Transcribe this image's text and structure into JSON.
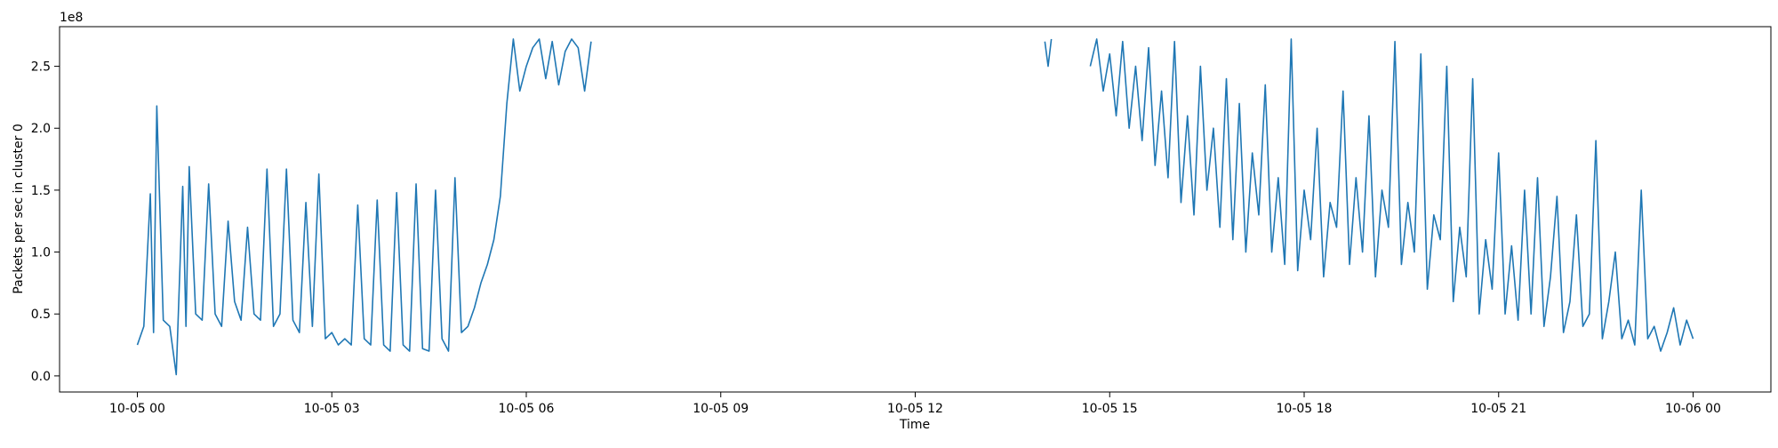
{
  "chart_data": {
    "type": "line",
    "title": "",
    "xlabel": "Time",
    "ylabel": "Packets per sec in cluster 0",
    "y_exponent_label": "1e8",
    "x_ticks": [
      {
        "hours": 0,
        "label": "10-05 00"
      },
      {
        "hours": 3,
        "label": "10-05 03"
      },
      {
        "hours": 6,
        "label": "10-05 06"
      },
      {
        "hours": 9,
        "label": "10-05 09"
      },
      {
        "hours": 12,
        "label": "10-05 12"
      },
      {
        "hours": 15,
        "label": "10-05 15"
      },
      {
        "hours": 18,
        "label": "10-05 18"
      },
      {
        "hours": 21,
        "label": "10-05 21"
      },
      {
        "hours": 24,
        "label": "10-06 00"
      }
    ],
    "xlim_hours": [
      -1.2,
      25.2
    ],
    "y_ticks": [
      {
        "value": 0.0,
        "label": "0.0"
      },
      {
        "value": 0.5,
        "label": "0.5"
      },
      {
        "value": 1.0,
        "label": "1.0"
      },
      {
        "value": 1.5,
        "label": "1.5"
      },
      {
        "value": 2.0,
        "label": "2.0"
      },
      {
        "value": 2.5,
        "label": "2.5"
      }
    ],
    "ylim": [
      -0.13,
      2.82
    ],
    "grid": false,
    "legend": "none",
    "series": [
      {
        "color": "#1f77b4",
        "segments": [
          {
            "x": [
              0.0,
              0.1,
              0.2,
              0.25,
              0.3,
              0.4,
              0.5,
              0.6,
              0.7,
              0.75,
              0.8,
              0.9,
              1.0,
              1.1,
              1.2,
              1.3,
              1.4,
              1.5,
              1.6,
              1.7,
              1.8,
              1.9,
              2.0,
              2.1,
              2.2,
              2.3,
              2.4,
              2.5,
              2.6,
              2.7,
              2.8,
              2.9,
              3.0,
              3.1,
              3.2,
              3.3,
              3.4,
              3.5,
              3.6,
              3.7,
              3.8,
              3.9,
              4.0,
              4.1,
              4.2,
              4.3,
              4.4,
              4.5,
              4.6,
              4.7,
              4.8,
              4.9,
              5.0,
              5.1,
              5.2,
              5.3,
              5.4,
              5.5,
              5.6,
              5.7,
              5.8,
              5.9,
              6.0,
              6.1,
              6.2,
              6.3,
              6.4,
              6.5,
              6.6,
              6.7,
              6.8,
              6.9,
              7.0
            ],
            "y": [
              0.25,
              0.4,
              1.47,
              0.35,
              2.18,
              0.45,
              0.4,
              0.01,
              1.53,
              0.4,
              1.69,
              0.5,
              0.45,
              1.55,
              0.5,
              0.4,
              1.25,
              0.6,
              0.45,
              1.2,
              0.5,
              0.45,
              1.67,
              0.4,
              0.5,
              1.67,
              0.45,
              0.35,
              1.4,
              0.4,
              1.63,
              0.3,
              0.35,
              0.25,
              0.3,
              0.25,
              1.38,
              0.3,
              0.25,
              1.42,
              0.25,
              0.2,
              1.48,
              0.25,
              0.2,
              1.55,
              0.22,
              0.2,
              1.5,
              0.3,
              0.2,
              1.6,
              0.35,
              0.4,
              0.55,
              0.75,
              0.9,
              1.1,
              1.45,
              2.2,
              2.72,
              2.3,
              2.5,
              2.65,
              2.72,
              2.4,
              2.7,
              2.35,
              2.62,
              2.72,
              2.65,
              2.3,
              2.7
            ]
          },
          {
            "x": [
              14.0,
              14.05,
              14.1
            ],
            "y": [
              2.7,
              2.5,
              2.72
            ]
          },
          {
            "x": [
              14.7,
              14.8,
              14.9,
              15.0,
              15.1,
              15.2,
              15.3,
              15.4,
              15.5,
              15.6,
              15.7,
              15.8,
              15.9,
              16.0,
              16.1,
              16.2,
              16.3,
              16.4,
              16.5,
              16.6,
              16.7,
              16.8,
              16.9,
              17.0,
              17.1,
              17.2,
              17.3,
              17.4,
              17.5,
              17.6,
              17.7,
              17.8,
              17.9,
              18.0,
              18.1,
              18.2,
              18.3,
              18.4,
              18.5,
              18.6,
              18.7,
              18.8,
              18.9,
              19.0,
              19.1,
              19.2,
              19.3,
              19.4,
              19.5,
              19.6,
              19.7,
              19.8,
              19.9,
              20.0,
              20.1,
              20.2,
              20.3,
              20.4,
              20.5,
              20.6,
              20.7,
              20.8,
              20.9,
              21.0,
              21.1,
              21.2,
              21.3,
              21.4,
              21.5,
              21.6,
              21.7,
              21.8,
              21.9,
              22.0,
              22.1,
              22.2,
              22.3,
              22.4,
              22.5,
              22.6,
              22.7,
              22.8,
              22.9,
              23.0,
              23.1,
              23.2,
              23.3,
              23.4,
              23.5,
              23.6,
              23.7,
              23.8,
              23.9,
              24.0
            ],
            "y": [
              2.5,
              2.72,
              2.3,
              2.6,
              2.1,
              2.7,
              2.0,
              2.5,
              1.9,
              2.65,
              1.7,
              2.3,
              1.6,
              2.7,
              1.4,
              2.1,
              1.3,
              2.5,
              1.5,
              2.0,
              1.2,
              2.4,
              1.1,
              2.2,
              1.0,
              1.8,
              1.3,
              2.35,
              1.0,
              1.6,
              0.9,
              2.72,
              0.85,
              1.5,
              1.1,
              2.0,
              0.8,
              1.4,
              1.2,
              2.3,
              0.9,
              1.6,
              1.0,
              2.1,
              0.8,
              1.5,
              1.2,
              2.7,
              0.9,
              1.4,
              1.0,
              2.6,
              0.7,
              1.3,
              1.1,
              2.5,
              0.6,
              1.2,
              0.8,
              2.4,
              0.5,
              1.1,
              0.7,
              1.8,
              0.5,
              1.05,
              0.45,
              1.5,
              0.5,
              1.6,
              0.4,
              0.8,
              1.45,
              0.35,
              0.6,
              1.3,
              0.4,
              0.5,
              1.9,
              0.3,
              0.6,
              1.0,
              0.3,
              0.45,
              0.25,
              1.5,
              0.3,
              0.4,
              0.2,
              0.35,
              0.55,
              0.25,
              0.45,
              0.3
            ]
          }
        ]
      }
    ]
  }
}
